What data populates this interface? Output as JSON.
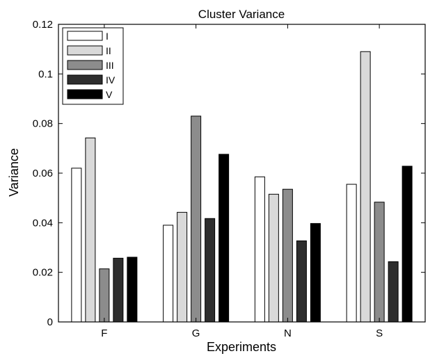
{
  "chart_data": {
    "type": "bar",
    "title": "Cluster Variance",
    "xlabel": "Experiments",
    "ylabel": "Variance",
    "categories": [
      "F",
      "G",
      "N",
      "S"
    ],
    "ylim": [
      0,
      0.12
    ],
    "yticks": [
      "0",
      "0.02",
      "0.04",
      "0.06",
      "0.08",
      "0.1",
      "0.12"
    ],
    "legend_position": "top-left",
    "grid": false,
    "series": [
      {
        "name": "I",
        "color": "#ffffff",
        "values": [
          0.062,
          0.039,
          0.0585,
          0.0555
        ]
      },
      {
        "name": "II",
        "color": "#d9d9d9",
        "values": [
          0.0742,
          0.0442,
          0.0515,
          0.109
        ]
      },
      {
        "name": "III",
        "color": "#8c8c8c",
        "values": [
          0.0214,
          0.083,
          0.0535,
          0.0483
        ]
      },
      {
        "name": "IV",
        "color": "#2e2e2e",
        "values": [
          0.0257,
          0.0417,
          0.0327,
          0.0243
        ]
      },
      {
        "name": "V",
        "color": "#000000",
        "values": [
          0.0261,
          0.0676,
          0.0397,
          0.0628
        ]
      }
    ]
  }
}
